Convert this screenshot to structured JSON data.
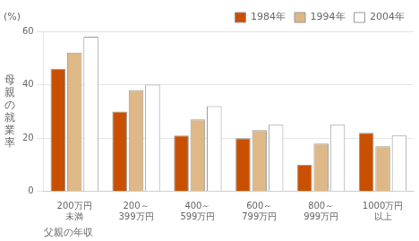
{
  "chart_data": {
    "type": "bar",
    "categories": [
      "200万円\n未満",
      "200～\n399万円",
      "400～\n599万円",
      "600～\n799万円",
      "800～\n999万円",
      "1000万円\n以上"
    ],
    "series": [
      {
        "name": "1984年",
        "color": "#c85000",
        "values": [
          46,
          30,
          21,
          20,
          10,
          22
        ]
      },
      {
        "name": "1994年",
        "color": "#deb887",
        "values": [
          52,
          38,
          27,
          23,
          18,
          17
        ]
      },
      {
        "name": "2004年",
        "color": "#ffffff",
        "values": [
          58,
          40,
          32,
          25,
          25,
          21
        ]
      }
    ],
    "ylabel": "母\n親\nの\n就\n業\n率",
    "xlabel": "父親の年収",
    "annotations": [
      "(%)"
    ],
    "ylim": [
      0,
      60
    ],
    "yticks": [
      0,
      20,
      40,
      60
    ],
    "grid": true,
    "legend": "upper right"
  }
}
